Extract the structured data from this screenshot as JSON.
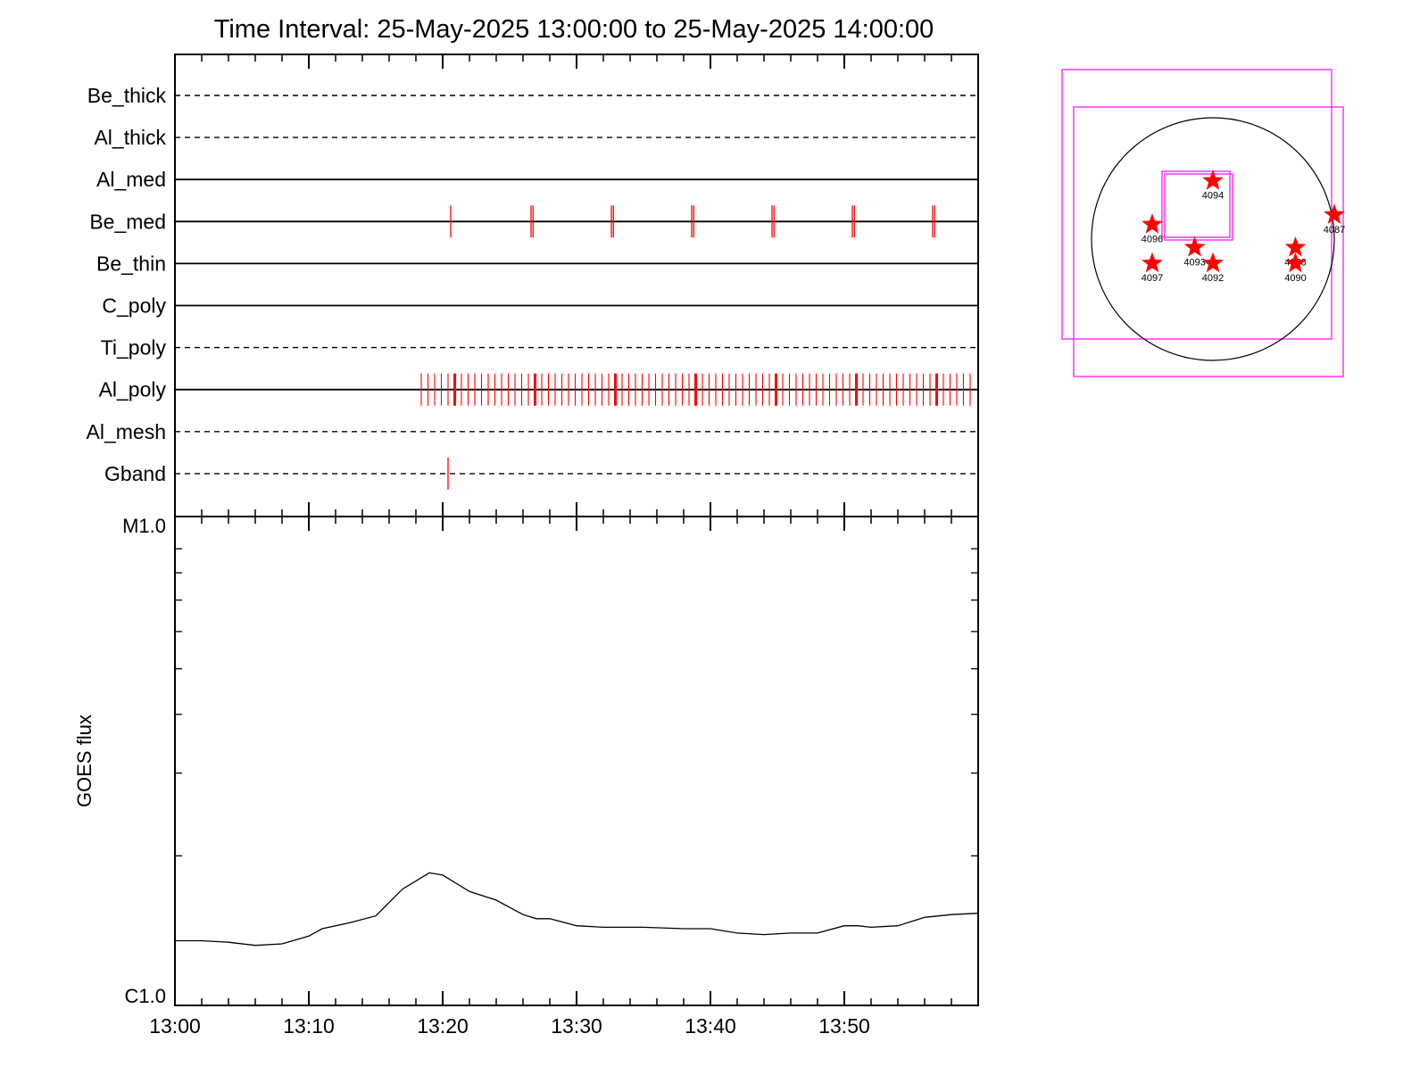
{
  "chart_data": [
    {
      "type": "timeline",
      "title": "Time Interval: 25-May-2025 13:00:00 to 25-May-2025 14:00:00",
      "x_range": [
        "13:00",
        "14:00"
      ],
      "rows": [
        {
          "name": "Be_thick",
          "style": "dashed",
          "exposures": []
        },
        {
          "name": "Al_thick",
          "style": "dashed",
          "exposures": []
        },
        {
          "name": "Al_med",
          "style": "solid",
          "exposures": []
        },
        {
          "name": "Be_med",
          "style": "solid",
          "exposures": [
            20.6,
            26.6,
            26.75,
            32.6,
            32.75,
            38.6,
            38.75,
            44.6,
            44.75,
            50.6,
            50.75,
            56.6,
            56.75
          ]
        },
        {
          "name": "Be_thin",
          "style": "solid",
          "exposures": []
        },
        {
          "name": "C_poly",
          "style": "solid",
          "exposures": []
        },
        {
          "name": "Ti_poly",
          "style": "dashed",
          "exposures": []
        },
        {
          "name": "Al_poly",
          "style": "solid",
          "exposure_range": [
            18.4,
            59.6
          ],
          "exposure_interval": 0.5,
          "bold_exposures": [
            20.9,
            26.9,
            32.9,
            38.9,
            44.9,
            50.9,
            56.9
          ]
        },
        {
          "name": "Al_mesh",
          "style": "dashed",
          "exposures": []
        },
        {
          "name": "Gband",
          "style": "dashed",
          "exposures": [
            20.4
          ]
        }
      ],
      "marker_color": "#ff0000"
    },
    {
      "type": "line",
      "ylabel": "GOES flux",
      "yticks": [
        "M1.0",
        "C1.0"
      ],
      "y_scale": "log",
      "ylim": [
        1e-06,
        1e-05
      ],
      "xticks": [
        "13:00",
        "13:10",
        "13:20",
        "13:30",
        "13:40",
        "13:50"
      ],
      "xlim": [
        0,
        60
      ],
      "series": [
        {
          "x": [
            0,
            2,
            4,
            6,
            8,
            10,
            11,
            13,
            15,
            17,
            19,
            20,
            22,
            24,
            26,
            27,
            28,
            30,
            32,
            35,
            38,
            40,
            42,
            44,
            46,
            48,
            50,
            51,
            52,
            54,
            56,
            58,
            60
          ],
          "y": [
            1.32e-06,
            1.32e-06,
            1.31e-06,
            1.29e-06,
            1.3e-06,
            1.35e-06,
            1.4e-06,
            1.44e-06,
            1.49e-06,
            1.7e-06,
            1.84e-06,
            1.82e-06,
            1.68e-06,
            1.61e-06,
            1.5e-06,
            1.47e-06,
            1.47e-06,
            1.42e-06,
            1.41e-06,
            1.41e-06,
            1.4e-06,
            1.4e-06,
            1.37e-06,
            1.36e-06,
            1.37e-06,
            1.37e-06,
            1.42e-06,
            1.42e-06,
            1.41e-06,
            1.42e-06,
            1.48e-06,
            1.5e-06,
            1.51e-06
          ]
        }
      ]
    },
    {
      "type": "scatter",
      "disk": true,
      "regions": [
        {
          "label": "4094",
          "x": 0.0,
          "y": 0.48
        },
        {
          "label": "4096",
          "x": -0.5,
          "y": 0.12
        },
        {
          "label": "4093",
          "x": -0.15,
          "y": -0.07
        },
        {
          "label": "4097",
          "x": -0.5,
          "y": -0.2
        },
        {
          "label": "4092",
          "x": 0.0,
          "y": -0.2
        },
        {
          "label": "4088",
          "x": 0.68,
          "y": -0.07
        },
        {
          "label": "4090",
          "x": 0.68,
          "y": -0.2
        },
        {
          "label": "4087",
          "x": 1.0,
          "y": 0.2
        }
      ],
      "star_color": "#ff0000",
      "box_color": "#ff33ff"
    }
  ]
}
